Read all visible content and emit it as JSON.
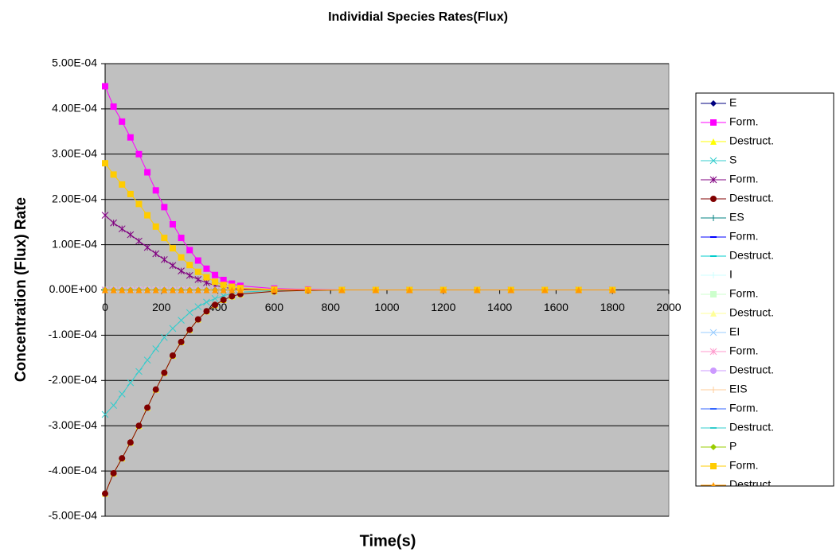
{
  "chart_data": {
    "type": "line",
    "title": "Individial Species Rates(Flux)",
    "xlabel": "Time(s)",
    "ylabel": "Concentration (Flux) Rate",
    "x": [
      0,
      30,
      60,
      90,
      120,
      150,
      180,
      210,
      240,
      270,
      300,
      330,
      360,
      390,
      420,
      450,
      480,
      600,
      720,
      840,
      960,
      1080,
      1200,
      1320,
      1440,
      1560,
      1680,
      1800
    ],
    "xlim": [
      0,
      2000
    ],
    "xticks": [
      0,
      200,
      400,
      600,
      800,
      1000,
      1200,
      1400,
      1600,
      1800,
      2000
    ],
    "ylim": [
      -0.0005,
      0.0005
    ],
    "yticks": [
      {
        "value": 0.0005,
        "label": "5.00E-04"
      },
      {
        "value": 0.0004,
        "label": "4.00E-04"
      },
      {
        "value": 0.0003,
        "label": "3.00E-04"
      },
      {
        "value": 0.0002,
        "label": "2.00E-04"
      },
      {
        "value": 0.0001,
        "label": "1.00E-04"
      },
      {
        "value": 0,
        "label": "0.00E+00"
      },
      {
        "value": -0.0001,
        "label": "-1.00E-04"
      },
      {
        "value": -0.0002,
        "label": "-2.00E-04"
      },
      {
        "value": -0.0003,
        "label": "-3.00E-04"
      },
      {
        "value": -0.0004,
        "label": "-4.00E-04"
      },
      {
        "value": -0.0005,
        "label": "-5.00E-04"
      }
    ],
    "grid": true,
    "legend": "right",
    "series": [
      {
        "name": "E",
        "color": "#000080",
        "marker": "diamond",
        "values": [
          0,
          0,
          0,
          0,
          0,
          0,
          0,
          0,
          0,
          0,
          0,
          0,
          0,
          0,
          0,
          0,
          0,
          0,
          0,
          0,
          0,
          0,
          0,
          0,
          0,
          0,
          0,
          0
        ]
      },
      {
        "name": "Form.",
        "color": "#ff00ff",
        "marker": "square",
        "values": [
          0.00045,
          0.000405,
          0.000372,
          0.000337,
          0.0003,
          0.00026,
          0.00022,
          0.000183,
          0.000145,
          0.000115,
          8.8e-05,
          6.5e-05,
          4.7e-05,
          3.3e-05,
          2.2e-05,
          1.4e-05,
          9e-06,
          3e-06,
          1e-06,
          0,
          0,
          0,
          0,
          0,
          0,
          0,
          0,
          0
        ]
      },
      {
        "name": "Destruct.",
        "color": "#ffff00",
        "marker": "triangle",
        "values": [
          -0.00045,
          -0.000405,
          -0.000372,
          -0.000337,
          -0.0003,
          -0.00026,
          -0.00022,
          -0.000183,
          -0.000145,
          -0.000115,
          -8.8e-05,
          -6.5e-05,
          -4.7e-05,
          -3.3e-05,
          -2.2e-05,
          -1.4e-05,
          -9e-06,
          -3e-06,
          -1e-06,
          0,
          0,
          0,
          0,
          0,
          0,
          0,
          0,
          0
        ]
      },
      {
        "name": "S",
        "color": "#33cccc",
        "marker": "x",
        "values": [
          -0.000275,
          -0.000255,
          -0.00023,
          -0.000205,
          -0.00018,
          -0.000155,
          -0.00013,
          -0.000105,
          -8.5e-05,
          -6.7e-05,
          -5e-05,
          -3.7e-05,
          -2.7e-05,
          -1.9e-05,
          -1.3e-05,
          -8e-06,
          -5e-06,
          -1e-06,
          0,
          0,
          0,
          0,
          0,
          0,
          0,
          0,
          0,
          0
        ]
      },
      {
        "name": "Form.",
        "color": "#800080",
        "marker": "star",
        "values": [
          0.000165,
          0.000148,
          0.000135,
          0.000122,
          0.000108,
          9.4e-05,
          8e-05,
          6.7e-05,
          5.4e-05,
          4.2e-05,
          3.2e-05,
          2.3e-05,
          1.6e-05,
          1e-05,
          6e-06,
          3e-06,
          2e-06,
          0,
          0,
          0,
          0,
          0,
          0,
          0,
          0,
          0,
          0,
          0
        ]
      },
      {
        "name": "Destruct.",
        "color": "#800000",
        "marker": "circle",
        "values": [
          -0.00045,
          -0.000405,
          -0.000372,
          -0.000337,
          -0.0003,
          -0.00026,
          -0.00022,
          -0.000183,
          -0.000145,
          -0.000115,
          -8.8e-05,
          -6.5e-05,
          -4.7e-05,
          -3.3e-05,
          -2.2e-05,
          -1.4e-05,
          -9e-06,
          -3e-06,
          -1e-06,
          0,
          0,
          0,
          0,
          0,
          0,
          0,
          0,
          0
        ]
      },
      {
        "name": "ES",
        "color": "#008080",
        "marker": "plus",
        "values": [
          0,
          0,
          0,
          0,
          0,
          0,
          0,
          0,
          0,
          0,
          0,
          0,
          0,
          0,
          0,
          0,
          0,
          0,
          0,
          0,
          0,
          0,
          0,
          0,
          0,
          0,
          0,
          0
        ]
      },
      {
        "name": "Form.",
        "color": "#0000ff",
        "marker": "dash",
        "values": [
          0,
          0,
          0,
          0,
          0,
          0,
          0,
          0,
          0,
          0,
          0,
          0,
          0,
          0,
          0,
          0,
          0,
          0,
          0,
          0,
          0,
          0,
          0,
          0,
          0,
          0,
          0,
          0
        ]
      },
      {
        "name": "Destruct.",
        "color": "#00cccc",
        "marker": "dash",
        "values": [
          0,
          0,
          0,
          0,
          0,
          0,
          0,
          0,
          0,
          0,
          0,
          0,
          0,
          0,
          0,
          0,
          0,
          0,
          0,
          0,
          0,
          0,
          0,
          0,
          0,
          0,
          0,
          0
        ]
      },
      {
        "name": "I",
        "color": "#ccffff",
        "marker": "plus",
        "values": [
          0,
          0,
          0,
          0,
          0,
          0,
          0,
          0,
          0,
          0,
          0,
          0,
          0,
          0,
          0,
          0,
          0,
          0,
          0,
          0,
          0,
          0,
          0,
          0,
          0,
          0,
          0,
          0
        ]
      },
      {
        "name": "Form.",
        "color": "#ccffcc",
        "marker": "square",
        "values": [
          0,
          0,
          0,
          0,
          0,
          0,
          0,
          0,
          0,
          0,
          0,
          0,
          0,
          0,
          0,
          0,
          0,
          0,
          0,
          0,
          0,
          0,
          0,
          0,
          0,
          0,
          0,
          0
        ]
      },
      {
        "name": "Destruct.",
        "color": "#ffff99",
        "marker": "triangle",
        "values": [
          0,
          0,
          0,
          0,
          0,
          0,
          0,
          0,
          0,
          0,
          0,
          0,
          0,
          0,
          0,
          0,
          0,
          0,
          0,
          0,
          0,
          0,
          0,
          0,
          0,
          0,
          0,
          0
        ]
      },
      {
        "name": "EI",
        "color": "#99ccff",
        "marker": "x",
        "values": [
          0,
          0,
          0,
          0,
          0,
          0,
          0,
          0,
          0,
          0,
          0,
          0,
          0,
          0,
          0,
          0,
          0,
          0,
          0,
          0,
          0,
          0,
          0,
          0,
          0,
          0,
          0,
          0
        ]
      },
      {
        "name": "Form.",
        "color": "#ff99cc",
        "marker": "star",
        "values": [
          0,
          0,
          0,
          0,
          0,
          0,
          0,
          0,
          0,
          0,
          0,
          0,
          0,
          0,
          0,
          0,
          0,
          0,
          0,
          0,
          0,
          0,
          0,
          0,
          0,
          0,
          0,
          0
        ]
      },
      {
        "name": "Destruct.",
        "color": "#cc99ff",
        "marker": "circle",
        "values": [
          0,
          0,
          0,
          0,
          0,
          0,
          0,
          0,
          0,
          0,
          0,
          0,
          0,
          0,
          0,
          0,
          0,
          0,
          0,
          0,
          0,
          0,
          0,
          0,
          0,
          0,
          0,
          0
        ]
      },
      {
        "name": "EIS",
        "color": "#ffcc99",
        "marker": "plus",
        "values": [
          0,
          0,
          0,
          0,
          0,
          0,
          0,
          0,
          0,
          0,
          0,
          0,
          0,
          0,
          0,
          0,
          0,
          0,
          0,
          0,
          0,
          0,
          0,
          0,
          0,
          0,
          0,
          0
        ]
      },
      {
        "name": "Form.",
        "color": "#3366ff",
        "marker": "dash",
        "values": [
          0,
          0,
          0,
          0,
          0,
          0,
          0,
          0,
          0,
          0,
          0,
          0,
          0,
          0,
          0,
          0,
          0,
          0,
          0,
          0,
          0,
          0,
          0,
          0,
          0,
          0,
          0,
          0
        ]
      },
      {
        "name": "Destruct.",
        "color": "#33cccc",
        "marker": "dash",
        "values": [
          0,
          0,
          0,
          0,
          0,
          0,
          0,
          0,
          0,
          0,
          0,
          0,
          0,
          0,
          0,
          0,
          0,
          0,
          0,
          0,
          0,
          0,
          0,
          0,
          0,
          0,
          0,
          0
        ]
      },
      {
        "name": "P",
        "color": "#99cc00",
        "marker": "diamond",
        "values": [
          0,
          0,
          0,
          0,
          0,
          0,
          0,
          0,
          0,
          0,
          0,
          0,
          0,
          0,
          0,
          0,
          0,
          0,
          0,
          0,
          0,
          0,
          0,
          0,
          0,
          0,
          0,
          0
        ]
      },
      {
        "name": "Form.",
        "color": "#ffcc00",
        "marker": "square",
        "values": [
          0.00028,
          0.000255,
          0.000233,
          0.000212,
          0.00019,
          0.000165,
          0.00014,
          0.000115,
          9.2e-05,
          7.2e-05,
          5.5e-05,
          4e-05,
          2.8e-05,
          1.8e-05,
          1.1e-05,
          7e-06,
          4e-06,
          1e-06,
          0,
          0,
          0,
          0,
          0,
          0,
          0,
          0,
          0,
          0
        ]
      },
      {
        "name": "Destruct.",
        "color": "#ff9900",
        "marker": "triangle",
        "values": [
          0,
          0,
          0,
          0,
          0,
          0,
          0,
          0,
          0,
          0,
          0,
          0,
          0,
          0,
          0,
          0,
          0,
          0,
          0,
          0,
          0,
          0,
          0,
          0,
          0,
          0,
          0,
          0
        ]
      }
    ]
  }
}
